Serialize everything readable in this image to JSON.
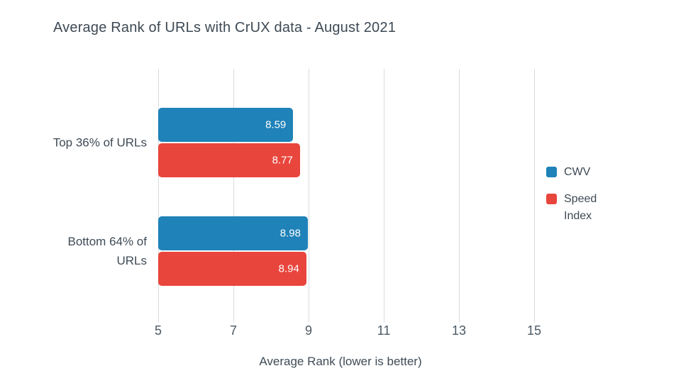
{
  "title": "Average Rank of URLs with CrUX data - August 2021",
  "chart_data": {
    "type": "bar",
    "orientation": "horizontal",
    "title": "Average Rank of URLs with CrUX data - August 2021",
    "categories": [
      "Top 36% of URLs",
      "Bottom 64% of URLs"
    ],
    "series": [
      {
        "name": "CWV",
        "color": "#1f82b8",
        "values": [
          8.59,
          8.98
        ]
      },
      {
        "name": "Speed Index",
        "color": "#e8453c",
        "values": [
          8.77,
          8.94
        ]
      }
    ],
    "value_labels": [
      "8.59",
      "8.77",
      "8.98",
      "8.94"
    ],
    "xlabel": "Average Rank (lower is better)",
    "xlim": [
      5,
      15
    ],
    "xticks": [
      5,
      7,
      9,
      11,
      13,
      15
    ],
    "grid": true,
    "legend_position": "right"
  },
  "colors": {
    "cwv_blue": "#1f82b8",
    "speed_index_red": "#e8453c",
    "text": "#3f4b56",
    "gridline": "#d8dbde",
    "background": "#ffffff"
  }
}
